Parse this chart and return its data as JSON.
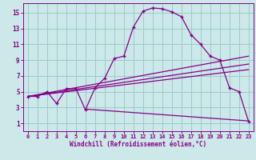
{
  "xlabel": "Windchill (Refroidissement éolien,°C)",
  "bg_color": "#cce8e8",
  "line_color": "#880088",
  "grid_color": "#99cccc",
  "xlim": [
    -0.5,
    23.5
  ],
  "ylim": [
    0,
    16.2
  ],
  "xticks": [
    0,
    1,
    2,
    3,
    4,
    5,
    6,
    7,
    8,
    9,
    10,
    11,
    12,
    13,
    14,
    15,
    16,
    17,
    18,
    19,
    20,
    21,
    22,
    23
  ],
  "yticks": [
    1,
    3,
    5,
    7,
    9,
    11,
    13,
    15
  ],
  "line1_x": [
    0,
    1,
    2,
    3,
    4,
    5,
    6,
    7,
    8,
    9,
    10,
    11,
    12,
    13,
    14,
    15,
    16,
    17,
    18,
    19,
    20,
    21,
    22,
    23
  ],
  "line1_y": [
    4.4,
    4.4,
    5.0,
    3.5,
    5.4,
    5.4,
    2.7,
    5.5,
    6.7,
    9.2,
    9.5,
    13.2,
    15.2,
    15.6,
    15.5,
    15.1,
    14.5,
    12.2,
    11.0,
    9.5,
    9.0,
    5.5,
    5.0,
    1.2
  ],
  "line2_x": [
    0,
    23
  ],
  "line2_y": [
    4.4,
    9.5
  ],
  "line3_x": [
    0,
    23
  ],
  "line3_y": [
    4.4,
    8.5
  ],
  "line4_x": [
    0,
    23
  ],
  "line4_y": [
    4.4,
    7.8
  ],
  "line5_x": [
    6,
    23
  ],
  "line5_y": [
    2.8,
    1.3
  ]
}
